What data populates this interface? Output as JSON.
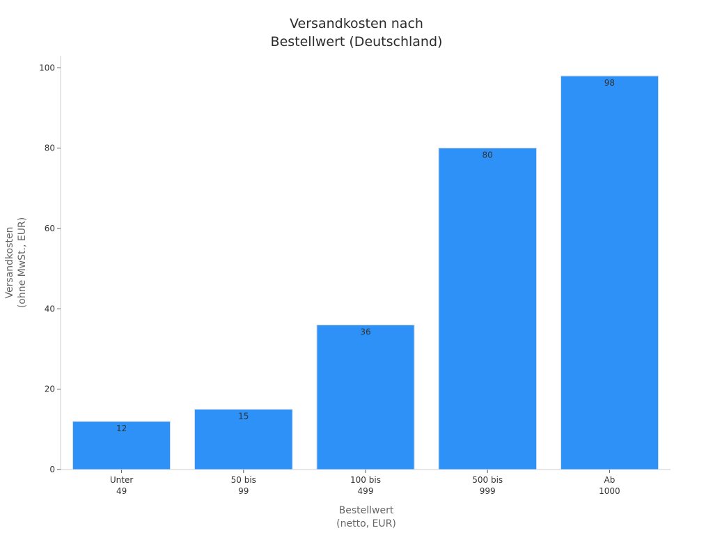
{
  "chart_data": {
    "type": "bar",
    "title_lines": [
      "Versandkosten nach",
      "Bestellwert (Deutschland)"
    ],
    "categories": [
      [
        "Unter",
        "49"
      ],
      [
        "50 bis",
        "99"
      ],
      [
        "100 bis",
        "499"
      ],
      [
        "500 bis",
        "999"
      ],
      [
        "Ab",
        "1000"
      ]
    ],
    "values": [
      12,
      15,
      36,
      80,
      98
    ],
    "xlabel_lines": [
      "Bestellwert",
      "(netto, EUR)"
    ],
    "ylabel_lines": [
      "Versandkosten",
      "(ohne MwSt., EUR)"
    ],
    "ylim": [
      0,
      103
    ],
    "yticks": [
      0,
      20,
      40,
      60,
      80,
      100
    ],
    "grid": false,
    "legend": "none",
    "colors": {
      "bar": "#2e91f7",
      "bar_edge": "#d0dcea",
      "axis": "#cccccc"
    }
  }
}
